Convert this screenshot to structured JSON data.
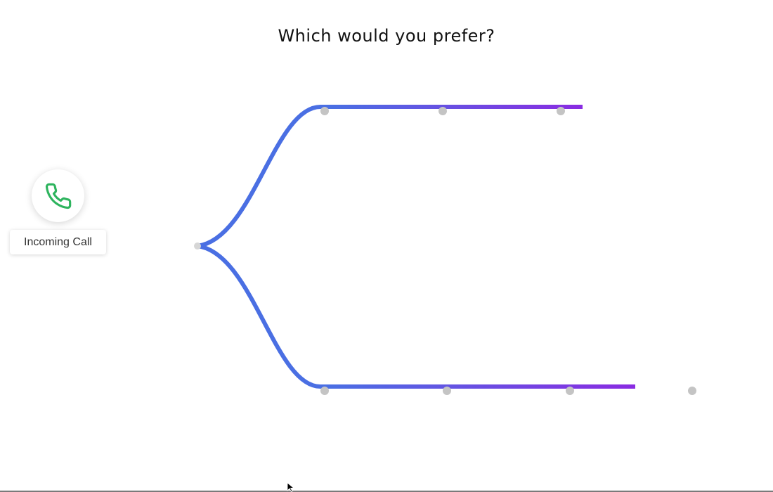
{
  "title": "Which would you prefer?",
  "incoming_call": {
    "label": "Incoming Call",
    "icon": "phone-icon",
    "icon_color": "#2eb45e"
  },
  "branches": [
    {
      "name": "upper",
      "steps": 3
    },
    {
      "name": "lower",
      "steps": 4
    }
  ],
  "colors": {
    "line_start": "#4a6fe3",
    "line_end": "#8a2be2",
    "step_dot": "#c4c4c4",
    "origin_dot": "#d6d6d6"
  }
}
